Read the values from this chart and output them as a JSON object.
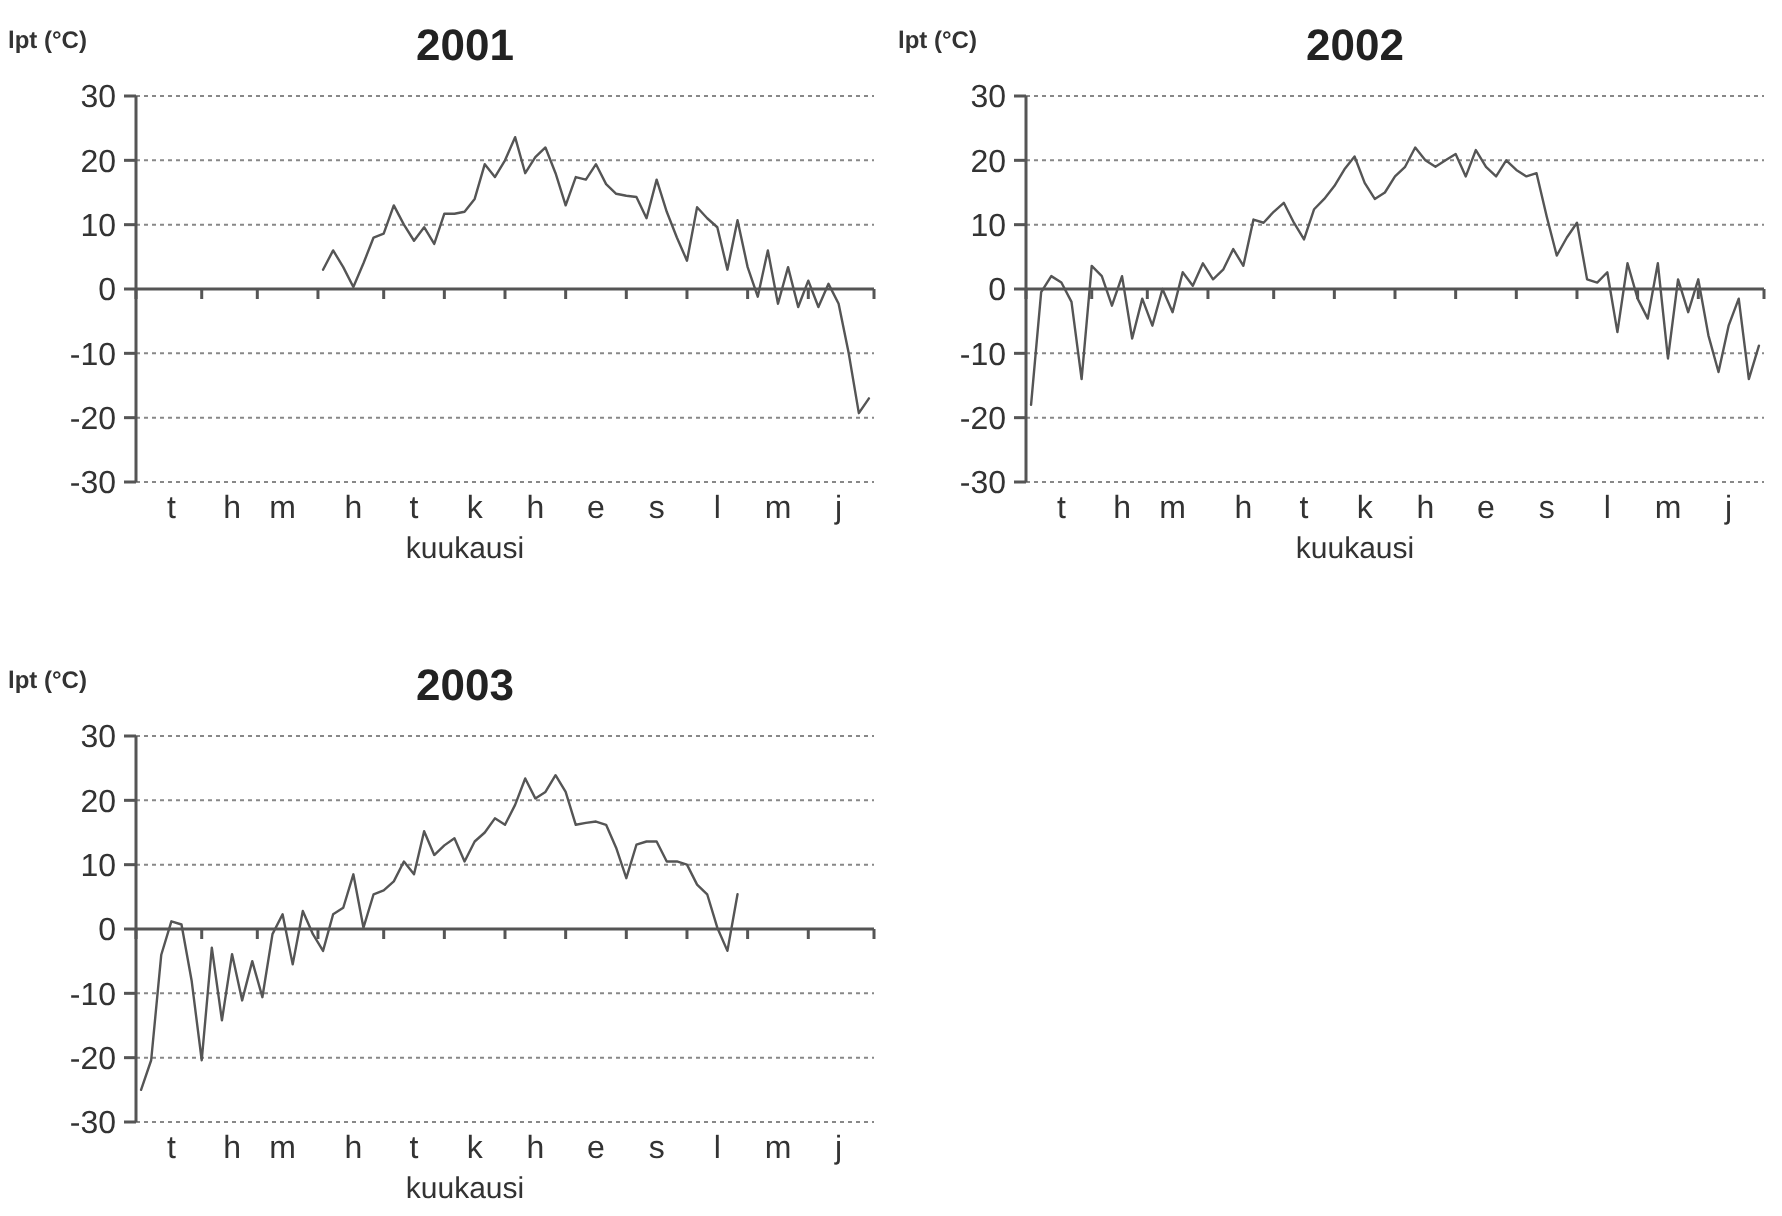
{
  "chart_data": [
    {
      "type": "line",
      "title": "2001",
      "xlabel": "kuukausi",
      "ylabel": "lpt (°C)",
      "color": "#555555",
      "grid": "y",
      "ylim": [
        -30,
        30
      ],
      "yticks": [
        -30,
        -20,
        -10,
        0,
        10,
        20,
        30
      ],
      "categories": [
        null,
        null,
        null,
        "t",
        null,
        null,
        null,
        null,
        null,
        "h",
        null,
        null,
        null,
        null,
        "m",
        null,
        null,
        null,
        null,
        null,
        null,
        "h",
        null,
        null,
        null,
        null,
        null,
        "t",
        null,
        null,
        null,
        null,
        null,
        "k",
        null,
        null,
        null,
        null,
        null,
        "h",
        null,
        null,
        null,
        null,
        null,
        "e",
        null,
        null,
        null,
        null,
        null,
        "s",
        null,
        null,
        null,
        null,
        null,
        "l",
        null,
        null,
        null,
        null,
        null,
        "m",
        null,
        null,
        null,
        null,
        null,
        "j",
        null,
        null,
        null
      ],
      "values": [
        null,
        null,
        null,
        null,
        null,
        null,
        null,
        null,
        null,
        null,
        null,
        null,
        null,
        null,
        null,
        null,
        null,
        null,
        3,
        6,
        3.4,
        0.3,
        4,
        8,
        8.6,
        13,
        10,
        7.5,
        9.6,
        7,
        11.7,
        11.7,
        12,
        14,
        19.4,
        17.4,
        20,
        23.6,
        18,
        20.5,
        22,
        18,
        13,
        17.4,
        17,
        19.4,
        16.3,
        14.8,
        14.5,
        14.3,
        11,
        17,
        12,
        8,
        4.4,
        12.7,
        11,
        9.6,
        3,
        10.7,
        3.4,
        -1.2,
        6,
        -2.3,
        3.4,
        -2.8,
        1.3,
        -2.8,
        0.8,
        -2.3,
        -10,
        -19.3,
        -17
      ]
    },
    {
      "type": "line",
      "title": "2002",
      "xlabel": "kuukausi",
      "ylabel": "lpt (°C)",
      "color": "#555555",
      "grid": "y",
      "ylim": [
        -30,
        30
      ],
      "yticks": [
        -30,
        -20,
        -10,
        0,
        10,
        20,
        30
      ],
      "categories": [
        null,
        null,
        null,
        "t",
        null,
        null,
        null,
        null,
        null,
        "h",
        null,
        null,
        null,
        null,
        "m",
        null,
        null,
        null,
        null,
        null,
        null,
        "h",
        null,
        null,
        null,
        null,
        null,
        "t",
        null,
        null,
        null,
        null,
        null,
        "k",
        null,
        null,
        null,
        null,
        null,
        "h",
        null,
        null,
        null,
        null,
        null,
        "e",
        null,
        null,
        null,
        null,
        null,
        "s",
        null,
        null,
        null,
        null,
        null,
        "l",
        null,
        null,
        null,
        null,
        null,
        "m",
        null,
        null,
        null,
        null,
        null,
        "j",
        null,
        null,
        null
      ],
      "values": [
        -18,
        -0.5,
        2,
        1,
        -2,
        -14,
        3.6,
        2,
        -2.6,
        2,
        -7.7,
        -1.5,
        -5.7,
        0,
        -3.6,
        2.6,
        0.5,
        4,
        1.5,
        3,
        6.2,
        3.6,
        10.8,
        10.3,
        12,
        13.4,
        10.3,
        7.7,
        12.4,
        14,
        16,
        18.6,
        20.6,
        16.5,
        14,
        15,
        17.5,
        19,
        22,
        20,
        19,
        20,
        21,
        17.5,
        21.6,
        19,
        17.5,
        20,
        18.5,
        17.5,
        18,
        11.3,
        5.2,
        8,
        10.3,
        1.5,
        1,
        2.6,
        -6.7,
        4,
        -1.5,
        -4.6,
        4,
        -10.8,
        1.5,
        -3.6,
        1.5,
        -7.2,
        -12.9,
        -5.7,
        -1.5,
        -14,
        -8.8
      ]
    },
    {
      "type": "line",
      "title": "2003",
      "xlabel": "kuukausi",
      "ylabel": "lpt (°C)",
      "color": "#555555",
      "grid": "y",
      "ylim": [
        -30,
        30
      ],
      "yticks": [
        -30,
        -20,
        -10,
        0,
        10,
        20,
        30
      ],
      "categories": [
        null,
        null,
        null,
        "t",
        null,
        null,
        null,
        null,
        null,
        "h",
        null,
        null,
        null,
        null,
        "m",
        null,
        null,
        null,
        null,
        null,
        null,
        "h",
        null,
        null,
        null,
        null,
        null,
        "t",
        null,
        null,
        null,
        null,
        null,
        "k",
        null,
        null,
        null,
        null,
        null,
        "h",
        null,
        null,
        null,
        null,
        null,
        "e",
        null,
        null,
        null,
        null,
        null,
        "s",
        null,
        null,
        null,
        null,
        null,
        "l",
        null,
        null,
        null,
        null,
        null,
        "m",
        null,
        null,
        null,
        null,
        null,
        "j",
        null,
        null,
        null
      ],
      "values": [
        -25,
        -20.4,
        -4,
        1.2,
        0.7,
        -8,
        -20.4,
        -2.9,
        -14.2,
        -3.9,
        -11.1,
        -5,
        -10.6,
        -0.8,
        2.3,
        -5.5,
        2.8,
        -0.8,
        -3.4,
        2.3,
        3.3,
        8.5,
        0.2,
        5.4,
        6,
        7.4,
        10.5,
        8.5,
        15.2,
        11.5,
        13,
        14.1,
        10.5,
        13.6,
        15,
        17.2,
        16.2,
        19.3,
        23.4,
        20.3,
        21.3,
        23.9,
        21.3,
        16.2,
        16.5,
        16.7,
        16.2,
        12.6,
        7.9,
        13.1,
        13.6,
        13.6,
        10.5,
        10.5,
        10,
        6.9,
        5.4,
        0.2,
        -3.4,
        5.4,
        null,
        null,
        null,
        null,
        null,
        null,
        null,
        null,
        null,
        null,
        null,
        null,
        null
      ]
    }
  ]
}
